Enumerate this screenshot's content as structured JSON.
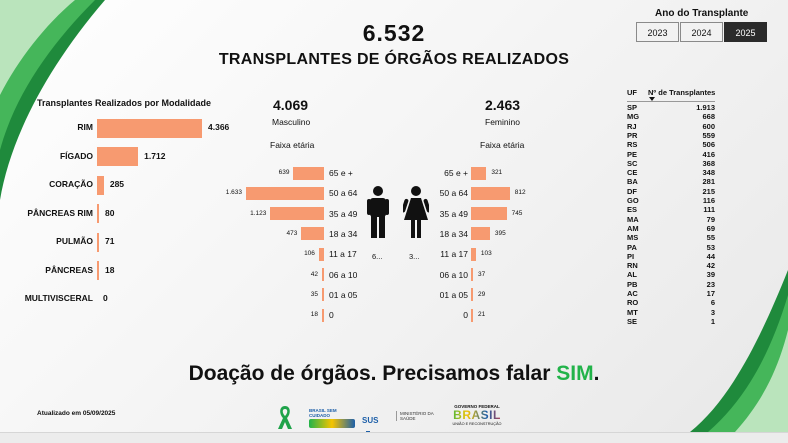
{
  "header": {
    "total": "6.532",
    "title": "TRANSPLANTES DE ÓRGÃOS REALIZADOS"
  },
  "year_filter": {
    "title": "Ano do Transplante",
    "options": [
      "2023",
      "2024",
      "2025"
    ],
    "selected": "2025"
  },
  "modality": {
    "title": "Transplantes Realizados por Modalidade",
    "max": 4366,
    "items": [
      {
        "label": "RIM",
        "value": 4366,
        "display": "4.366"
      },
      {
        "label": "FÍGADO",
        "value": 1712,
        "display": "1.712"
      },
      {
        "label": "CORAÇÃO",
        "value": 285,
        "display": "285"
      },
      {
        "label": "PÂNCREAS RIM",
        "value": 80,
        "display": "80"
      },
      {
        "label": "PULMÃO",
        "value": 71,
        "display": "71"
      },
      {
        "label": "PÂNCREAS",
        "value": 18,
        "display": "18"
      },
      {
        "label": "MULTIVISCERAL",
        "value": 0,
        "display": "0"
      }
    ]
  },
  "male": {
    "total": "4.069",
    "label": "Masculino",
    "age_title": "Faixa etária",
    "icon_caption": "6..."
  },
  "female": {
    "total": "2.463",
    "label": "Feminino",
    "age_title": "Faixa etária",
    "icon_caption": "3..."
  },
  "age_pyramid": {
    "max": 1633,
    "groups": [
      {
        "label": "65 e +",
        "male": 639,
        "male_display": "639",
        "female": 321,
        "female_display": "321"
      },
      {
        "label": "50 a 64",
        "male": 1633,
        "male_display": "1.633",
        "female": 812,
        "female_display": "812"
      },
      {
        "label": "35 a 49",
        "male": 1123,
        "male_display": "1.123",
        "female": 745,
        "female_display": "745"
      },
      {
        "label": "18 a 34",
        "male": 473,
        "male_display": "473",
        "female": 395,
        "female_display": "395"
      },
      {
        "label": "11 a 17",
        "male": 106,
        "male_display": "106",
        "female": 103,
        "female_display": "103"
      },
      {
        "label": "06 a 10",
        "male": 42,
        "male_display": "42",
        "female": 37,
        "female_display": "37"
      },
      {
        "label": "01 a 05",
        "male": 35,
        "male_display": "35",
        "female": 29,
        "female_display": "29"
      },
      {
        "label": "0",
        "male": 18,
        "male_display": "18",
        "female": 21,
        "female_display": "21"
      }
    ]
  },
  "states": {
    "col_uf": "UF",
    "col_count": "Nº de Transplantes",
    "rows": [
      {
        "uf": "SP",
        "n": "1.913"
      },
      {
        "uf": "MG",
        "n": "668"
      },
      {
        "uf": "RJ",
        "n": "600"
      },
      {
        "uf": "PR",
        "n": "559"
      },
      {
        "uf": "RS",
        "n": "506"
      },
      {
        "uf": "PE",
        "n": "416"
      },
      {
        "uf": "SC",
        "n": "368"
      },
      {
        "uf": "CE",
        "n": "348"
      },
      {
        "uf": "BA",
        "n": "281"
      },
      {
        "uf": "DF",
        "n": "215"
      },
      {
        "uf": "GO",
        "n": "116"
      },
      {
        "uf": "ES",
        "n": "111"
      },
      {
        "uf": "MA",
        "n": "79"
      },
      {
        "uf": "AM",
        "n": "69"
      },
      {
        "uf": "MS",
        "n": "55"
      },
      {
        "uf": "PA",
        "n": "53"
      },
      {
        "uf": "PI",
        "n": "44"
      },
      {
        "uf": "RN",
        "n": "42"
      },
      {
        "uf": "AL",
        "n": "39"
      },
      {
        "uf": "PB",
        "n": "23"
      },
      {
        "uf": "AC",
        "n": "17"
      },
      {
        "uf": "RO",
        "n": "6"
      },
      {
        "uf": "MT",
        "n": "3"
      },
      {
        "uf": "SE",
        "n": "1"
      }
    ]
  },
  "slogan": {
    "text": "Doação de órgãos. Precisamos falar ",
    "highlight": "SIM",
    "end": ".",
    "highlight_color": "#22b34a"
  },
  "footer": {
    "updated": "Atualizado em 05/09/2025",
    "brasil_cuidado": "BRASIL SEM CUIDADO",
    "sus": "SUS",
    "ministerio": "MINISTÉRIO DA SAÚDE",
    "governo": "GOVERNO FEDERAL",
    "brasil": "BRASIL",
    "uniao": "UNIÃO E RECONSTRUÇÃO"
  },
  "colors": {
    "bar": "#f79a70",
    "accent_green": "#22b34a",
    "selected_year": "#2b2b2b"
  },
  "icons": [
    "green-swoosh-icon",
    "male-person-icon",
    "female-person-icon",
    "green-ribbon-icon",
    "sus-cross-icon"
  ]
}
